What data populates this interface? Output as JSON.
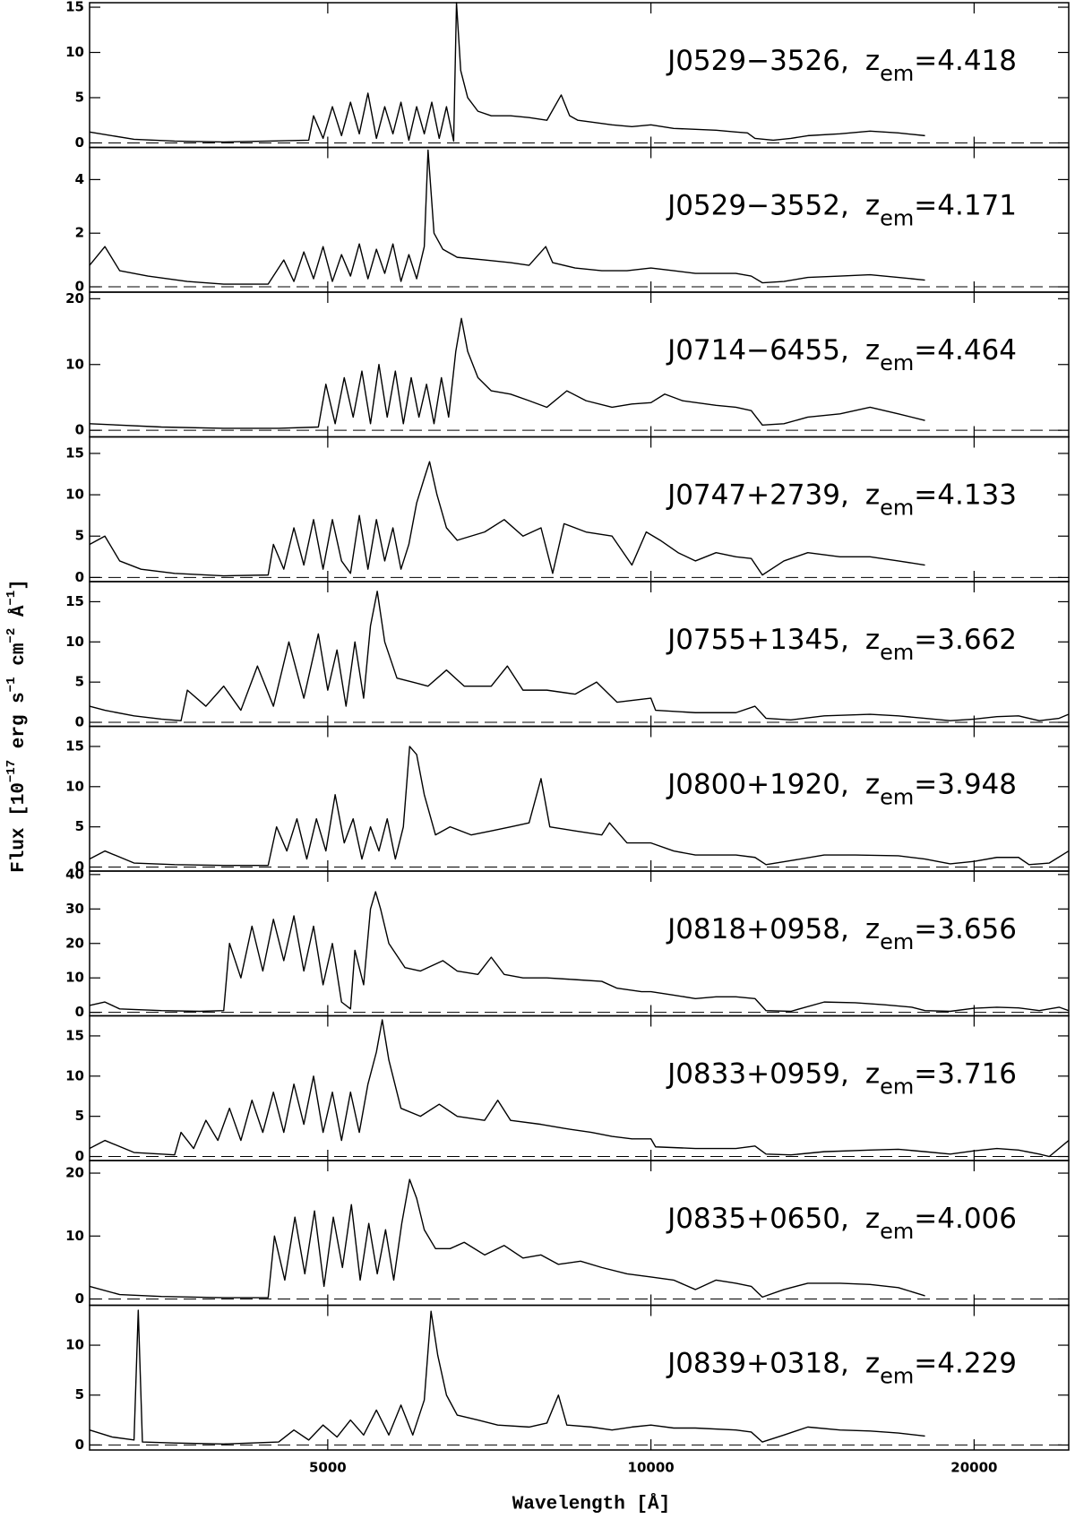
{
  "chart_data": {
    "type": "line",
    "xscale": "log",
    "color": "#000000",
    "zero_line": true,
    "xlabel": "Wavelength [Å]",
    "ylabel": [
      "Flux [10",
      "−17",
      " erg s",
      "−1",
      " cm",
      "−2",
      " Å",
      "−1",
      "]"
    ],
    "label_symbol": "z",
    "label_subscript": "em",
    "label_equals": "=",
    "xlim": [
      3000,
      24500
    ],
    "xticks": [
      5000,
      10000,
      20000
    ],
    "panels": [
      {
        "name": "J0529−3526,",
        "z_em": 4.418,
        "ylim": [
          -0.5,
          15.5
        ],
        "yticks": [
          0,
          5,
          10,
          15
        ],
        "x": [
          3000,
          3300,
          3600,
          4000,
          4400,
          4800,
          4850,
          4950,
          5050,
          5150,
          5250,
          5350,
          5450,
          5550,
          5650,
          5750,
          5850,
          5950,
          6050,
          6150,
          6250,
          6350,
          6450,
          6550,
          6590,
          6650,
          6750,
          6900,
          7100,
          7400,
          7700,
          8000,
          8250,
          8400,
          8550,
          8800,
          9200,
          9600,
          10000,
          10500,
          11000,
          11500,
          12000,
          12300,
          12500,
          13000,
          13500,
          14000,
          15000,
          16000,
          17000,
          18000
        ],
        "values": [
          1.2,
          0.4,
          0.2,
          0.1,
          0.2,
          0.3,
          3,
          0.5,
          4,
          0.8,
          4.5,
          1,
          5.5,
          0.5,
          4,
          1,
          4.5,
          0.3,
          4,
          1,
          4.5,
          0.5,
          4,
          0.2,
          15.5,
          8,
          5,
          3.5,
          3,
          3,
          2.8,
          2.5,
          5.3,
          3,
          2.5,
          2.3,
          2,
          1.8,
          2,
          1.6,
          1.5,
          1.4,
          1.2,
          1.1,
          0.5,
          0.3,
          0.5,
          0.8,
          1,
          1.3,
          1.1,
          0.8
        ]
      },
      {
        "name": "J0529−3552,",
        "z_em": 4.171,
        "ylim": [
          -0.2,
          5.2
        ],
        "yticks": [
          0,
          2,
          4
        ],
        "x": [
          3000,
          3100,
          3200,
          3400,
          3700,
          4000,
          4400,
          4550,
          4650,
          4750,
          4850,
          4950,
          5050,
          5150,
          5250,
          5350,
          5450,
          5550,
          5650,
          5750,
          5850,
          5950,
          6050,
          6150,
          6200,
          6280,
          6400,
          6600,
          7000,
          7400,
          7700,
          7980,
          8100,
          8500,
          9000,
          9500,
          10000,
          10500,
          11000,
          12000,
          12400,
          12700,
          13300,
          14000,
          15000,
          16000,
          17000,
          18000
        ],
        "values": [
          0.8,
          1.5,
          0.6,
          0.4,
          0.2,
          0.1,
          0.1,
          1,
          0.2,
          1.3,
          0.3,
          1.5,
          0.2,
          1.2,
          0.4,
          1.6,
          0.3,
          1.4,
          0.5,
          1.6,
          0.2,
          1.2,
          0.3,
          1.5,
          5.1,
          2,
          1.4,
          1.1,
          1,
          0.9,
          0.8,
          1.5,
          0.9,
          0.7,
          0.6,
          0.6,
          0.7,
          0.6,
          0.5,
          0.5,
          0.4,
          0.15,
          0.2,
          0.35,
          0.4,
          0.45,
          0.35,
          0.25
        ]
      },
      {
        "name": "J0714−6455,",
        "z_em": 4.464,
        "ylim": [
          -1,
          21
        ],
        "yticks": [
          0,
          10,
          20
        ],
        "x": [
          3000,
          3500,
          4000,
          4500,
          4900,
          4980,
          5080,
          5180,
          5280,
          5380,
          5480,
          5580,
          5680,
          5780,
          5880,
          5980,
          6080,
          6180,
          6280,
          6380,
          6480,
          6580,
          6660,
          6750,
          6900,
          7100,
          7400,
          7700,
          8000,
          8350,
          8700,
          9200,
          9600,
          10000,
          10300,
          10700,
          11500,
          12000,
          12400,
          12700,
          13300,
          14000,
          15000,
          16000,
          17000,
          18000
        ],
        "values": [
          1,
          0.5,
          0.3,
          0.3,
          0.5,
          7,
          1,
          8,
          2,
          9,
          1,
          10,
          2,
          9,
          1,
          8,
          2,
          7,
          1,
          8,
          2,
          12,
          17,
          12,
          8,
          6,
          5.5,
          4.5,
          3.5,
          6,
          4.5,
          3.5,
          4,
          4.2,
          5.5,
          4.5,
          3.8,
          3.5,
          3,
          0.8,
          1,
          2,
          2.5,
          3.5,
          2.5,
          1.5
        ]
      },
      {
        "name": "J0747+2739,",
        "z_em": 4.133,
        "ylim": [
          -0.5,
          17
        ],
        "yticks": [
          0,
          5,
          10,
          15
        ],
        "x": [
          3000,
          3100,
          3200,
          3350,
          3600,
          4000,
          4400,
          4450,
          4550,
          4650,
          4750,
          4850,
          4950,
          5050,
          5150,
          5250,
          5350,
          5450,
          5550,
          5650,
          5750,
          5850,
          5950,
          6050,
          6150,
          6220,
          6320,
          6450,
          6600,
          7000,
          7300,
          7600,
          7900,
          8100,
          8300,
          8700,
          9200,
          9600,
          9900,
          10200,
          10600,
          11000,
          11500,
          12000,
          12400,
          12700,
          13300,
          14000,
          15000,
          16000,
          17000,
          18000
        ],
        "values": [
          4,
          5,
          2,
          1,
          0.5,
          0.2,
          0.3,
          4,
          1,
          6,
          1.5,
          7,
          1,
          7,
          2,
          0.5,
          7.5,
          1,
          7,
          2,
          6,
          1,
          4,
          9,
          12,
          14,
          10,
          6,
          4.5,
          5.5,
          7,
          5,
          6,
          0.5,
          6.5,
          5.5,
          5,
          1.5,
          5.5,
          4.5,
          3,
          2,
          3,
          2.5,
          2.3,
          0.3,
          2,
          3,
          2.5,
          2.5,
          2,
          1.5
        ]
      },
      {
        "name": "J0755+1345,",
        "z_em": 3.662,
        "ylim": [
          -0.5,
          17.5
        ],
        "yticks": [
          0,
          5,
          10,
          15
        ],
        "x": [
          3000,
          3100,
          3300,
          3500,
          3650,
          3700,
          3850,
          4000,
          4150,
          4300,
          4450,
          4600,
          4750,
          4900,
          5000,
          5100,
          5200,
          5300,
          5400,
          5480,
          5560,
          5650,
          5800,
          6000,
          6200,
          6450,
          6700,
          7100,
          7350,
          7600,
          8000,
          8500,
          8900,
          9300,
          9700,
          10000,
          10100,
          11000,
          12000,
          12500,
          12800,
          13500,
          14500,
          16000,
          17000,
          18000,
          19000,
          20000,
          21000,
          22000,
          23000,
          24000,
          24500
        ],
        "values": [
          2,
          1.5,
          0.8,
          0.4,
          0.2,
          4,
          2,
          4.5,
          1.5,
          7,
          2,
          10,
          3,
          11,
          4,
          9,
          2,
          10,
          3,
          12,
          16.3,
          10,
          5.5,
          5,
          4.5,
          6.5,
          4.5,
          4.5,
          7,
          4,
          4,
          3.5,
          5,
          2.5,
          2.8,
          3,
          1.5,
          1.2,
          1.2,
          2,
          0.5,
          0.3,
          0.8,
          1,
          0.8,
          0.5,
          0.2,
          0.4,
          0.7,
          0.8,
          0.2,
          0.5,
          1
        ]
      },
      {
        "name": "J0800+1920,",
        "z_em": 3.948,
        "ylim": [
          -0.5,
          17.5
        ],
        "yticks": [
          0,
          5,
          10,
          15
        ],
        "x": [
          3000,
          3100,
          3300,
          3600,
          4000,
          4400,
          4480,
          4580,
          4680,
          4780,
          4880,
          4980,
          5080,
          5180,
          5280,
          5380,
          5480,
          5580,
          5680,
          5780,
          5880,
          5960,
          6050,
          6150,
          6300,
          6500,
          6800,
          7100,
          7400,
          7700,
          7900,
          8050,
          8500,
          9000,
          9150,
          9500,
          10000,
          10500,
          11000,
          12000,
          12500,
          12800,
          13500,
          14500,
          15500,
          17000,
          18000,
          19000,
          20000,
          21000,
          22000,
          22500,
          23500,
          24500
        ],
        "values": [
          1,
          2,
          0.5,
          0.3,
          0.2,
          0.2,
          5,
          2,
          6,
          1,
          6,
          2,
          9,
          3,
          6,
          1,
          5,
          2,
          6,
          1,
          5,
          15,
          14,
          9,
          4,
          5,
          4,
          4.5,
          5,
          5.5,
          11,
          5,
          4.5,
          4,
          5.5,
          3,
          3,
          2,
          1.5,
          1.5,
          1.2,
          0.3,
          0.8,
          1.5,
          1.5,
          1.4,
          1,
          0.4,
          0.7,
          1.2,
          1.2,
          0.3,
          0.5,
          2
        ]
      },
      {
        "name": "J0818+0958,",
        "z_em": 3.656,
        "ylim": [
          -1,
          41
        ],
        "yticks": [
          0,
          10,
          20,
          30,
          40
        ],
        "x": [
          3000,
          3100,
          3200,
          3500,
          3800,
          4000,
          4050,
          4150,
          4250,
          4350,
          4450,
          4550,
          4650,
          4750,
          4850,
          4950,
          5050,
          5150,
          5250,
          5300,
          5400,
          5480,
          5540,
          5600,
          5700,
          5900,
          6100,
          6400,
          6600,
          6900,
          7100,
          7300,
          7600,
          8000,
          8500,
          9000,
          9300,
          9800,
          10000,
          10500,
          11000,
          11500,
          12000,
          12500,
          12800,
          13500,
          14500,
          15500,
          16500,
          17500,
          18000,
          19000,
          20000,
          21000,
          22000,
          23000,
          24000,
          24500
        ],
        "values": [
          2,
          3,
          1,
          0.5,
          0.3,
          0.5,
          20,
          10,
          25,
          12,
          27,
          15,
          28,
          12,
          25,
          8,
          20,
          3,
          1,
          18,
          8,
          30,
          35,
          30,
          20,
          13,
          12,
          15,
          12,
          11,
          16,
          11,
          10,
          10,
          9.5,
          9,
          7,
          6,
          6,
          5,
          4,
          4.5,
          4.5,
          4,
          0.5,
          0.3,
          3,
          2.8,
          2.2,
          1.5,
          0.5,
          0.3,
          1.2,
          1.5,
          1.3,
          0.5,
          1.5,
          0.5
        ]
      },
      {
        "name": "J0833+0959,",
        "z_em": 3.716,
        "ylim": [
          -0.5,
          17.5
        ],
        "yticks": [
          0,
          5,
          10,
          15
        ],
        "x": [
          3000,
          3100,
          3300,
          3500,
          3600,
          3650,
          3750,
          3850,
          3950,
          4050,
          4150,
          4250,
          4350,
          4450,
          4550,
          4650,
          4750,
          4850,
          4950,
          5050,
          5150,
          5250,
          5350,
          5450,
          5550,
          5620,
          5700,
          5850,
          6100,
          6350,
          6600,
          7000,
          7200,
          7400,
          7900,
          8300,
          8800,
          9200,
          9600,
          10000,
          10100,
          11000,
          12000,
          12500,
          12800,
          13500,
          14500,
          16000,
          17000,
          18000,
          19000,
          20000,
          21000,
          22000,
          23000,
          23500,
          24500
        ],
        "values": [
          1,
          2,
          0.5,
          0.3,
          0.2,
          3,
          1,
          4.5,
          2,
          6,
          2,
          7,
          3,
          8,
          3,
          9,
          4,
          10,
          3,
          8,
          2,
          8,
          3,
          9,
          13,
          17,
          12,
          6,
          5,
          6.5,
          5,
          4.5,
          7,
          4.5,
          4,
          3.5,
          3,
          2.5,
          2.2,
          2.2,
          1.2,
          1,
          1,
          1.3,
          0.3,
          0.2,
          0.6,
          0.8,
          0.9,
          0.6,
          0.3,
          0.7,
          1,
          0.8,
          0.3,
          0,
          2
        ]
      },
      {
        "name": "J0835+0650,",
        "z_em": 4.006,
        "ylim": [
          -1,
          22
        ],
        "yticks": [
          0,
          10,
          20
        ],
        "x": [
          3000,
          3200,
          3500,
          4000,
          4400,
          4460,
          4560,
          4660,
          4760,
          4860,
          4960,
          5060,
          5160,
          5260,
          5360,
          5460,
          5560,
          5660,
          5760,
          5860,
          5960,
          6050,
          6150,
          6300,
          6500,
          6700,
          7000,
          7300,
          7600,
          7900,
          8200,
          8600,
          9000,
          9500,
          10000,
          10500,
          11000,
          11500,
          12000,
          12400,
          12700,
          13300,
          14000,
          15000,
          16000,
          17000,
          18000
        ],
        "values": [
          2,
          0.7,
          0.4,
          0.2,
          0.2,
          10,
          3,
          13,
          4,
          14,
          2,
          13,
          5,
          15,
          3,
          12,
          4,
          11,
          3,
          12,
          19,
          16,
          11,
          8,
          8,
          9,
          7,
          8.5,
          6.5,
          7,
          5.5,
          6,
          5,
          4,
          3.5,
          3,
          1.5,
          3,
          2.5,
          2,
          0.3,
          1.5,
          2.5,
          2.5,
          2.3,
          1.8,
          0.5
        ]
      },
      {
        "name": "J0839+0318,",
        "z_em": 4.229,
        "ylim": [
          -0.5,
          14
        ],
        "yticks": [
          0,
          5,
          10
        ],
        "x": [
          3000,
          3150,
          3300,
          3330,
          3360,
          3600,
          4000,
          4500,
          4650,
          4800,
          4950,
          5100,
          5250,
          5400,
          5550,
          5700,
          5850,
          6000,
          6150,
          6240,
          6330,
          6450,
          6600,
          6900,
          7200,
          7700,
          8000,
          8200,
          8350,
          8800,
          9200,
          9600,
          10000,
          10500,
          11000,
          12000,
          12400,
          12700,
          13300,
          14000,
          15000,
          16000,
          17000,
          18000
        ],
        "values": [
          1.5,
          0.8,
          0.5,
          13.5,
          0.3,
          0.2,
          0.1,
          0.3,
          1.5,
          0.5,
          2,
          0.8,
          2.5,
          1,
          3.5,
          1,
          4,
          1,
          4.5,
          13.4,
          9,
          5,
          3,
          2.5,
          2,
          1.8,
          2.2,
          5,
          2,
          1.8,
          1.5,
          1.8,
          2,
          1.7,
          1.7,
          1.5,
          1.3,
          0.3,
          1,
          1.8,
          1.5,
          1.4,
          1.2,
          0.9
        ]
      }
    ]
  }
}
